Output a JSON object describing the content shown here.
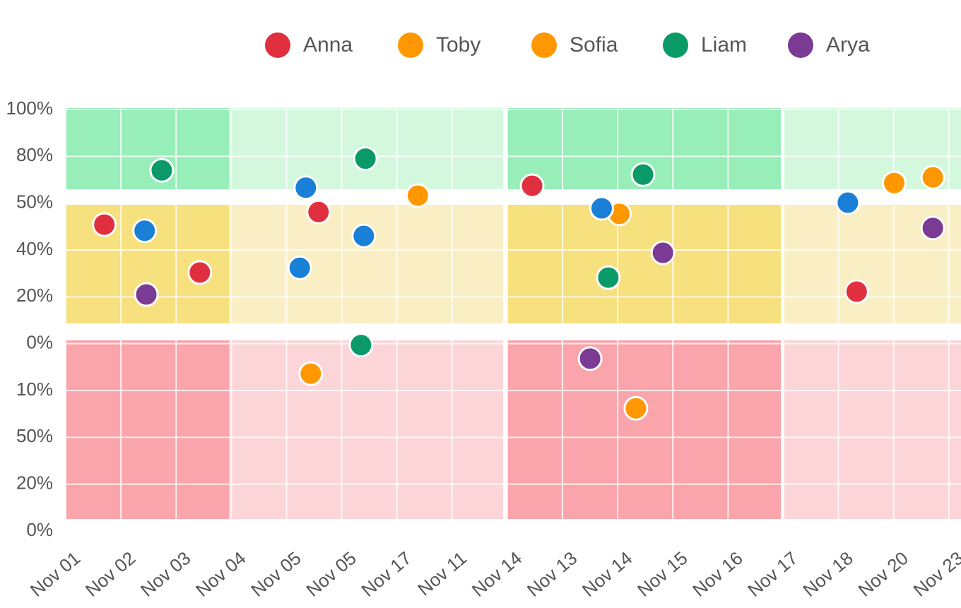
{
  "chart_data": {
    "type": "scatter",
    "xlim": [
      0,
      16.22
    ],
    "xticks": [
      {
        "value": 0,
        "label": "Nov 01"
      },
      {
        "value": 1,
        "label": "Nov 02"
      },
      {
        "value": 2,
        "label": "Nov 03"
      },
      {
        "value": 3,
        "label": "Nov 04"
      },
      {
        "value": 4,
        "label": "Nov 05"
      },
      {
        "value": 5,
        "label": "Nov 05"
      },
      {
        "value": 6,
        "label": "Nov 17"
      },
      {
        "value": 7,
        "label": "Nov 11"
      },
      {
        "value": 8,
        "label": "Nov 14"
      },
      {
        "value": 9,
        "label": "Nov 13"
      },
      {
        "value": 10,
        "label": "Nov 14"
      },
      {
        "value": 11,
        "label": "Nov 15"
      },
      {
        "value": 12,
        "label": "Nov 16"
      },
      {
        "value": 13,
        "label": "Nov 17"
      },
      {
        "value": 14,
        "label": "Nov 18"
      },
      {
        "value": 15,
        "label": "Nov 20"
      },
      {
        "value": 16,
        "label": "Nov 23"
      }
    ],
    "ylim": [
      0,
      9
    ],
    "yticks": [
      {
        "value": 0,
        "label": "0%"
      },
      {
        "value": 1,
        "label": "20%"
      },
      {
        "value": 2,
        "label": "50%"
      },
      {
        "value": 3,
        "label": "10%"
      },
      {
        "value": 4,
        "label": "0%"
      },
      {
        "value": 5,
        "label": "20%"
      },
      {
        "value": 6,
        "label": "40%"
      },
      {
        "value": 7,
        "label": "50%"
      },
      {
        "value": 8,
        "label": "80%"
      },
      {
        "value": 9,
        "label": "100%"
      }
    ],
    "grid": true,
    "series": [
      {
        "name": "Anna",
        "color": "#e0303f",
        "x": [
          0.7,
          4.58,
          2.43,
          8.45,
          14.33
        ],
        "values": [
          6.54,
          6.81,
          5.52,
          7.37,
          5.11
        ]
      },
      {
        "name": "Toby",
        "color": "#ff9800",
        "x": [
          6.38,
          4.44,
          10.03
        ],
        "values": [
          7.16,
          3.36,
          6.77
        ]
      },
      {
        "name": "Sofia",
        "color": "#ff9800",
        "x": [
          10.33,
          15.01,
          15.71
        ],
        "values": [
          2.62,
          7.43,
          7.55
        ]
      },
      {
        "name": "Liam",
        "color": "#0a9a68",
        "x": [
          1.74,
          5.43,
          5.35,
          10.46,
          9.83
        ],
        "values": [
          7.7,
          7.95,
          3.97,
          7.61,
          5.41
        ]
      },
      {
        "name": "Arya",
        "color": "#7b3a93",
        "x": [
          1.46,
          9.5,
          10.82,
          15.71
        ],
        "values": [
          5.05,
          3.68,
          5.94,
          6.47
        ]
      },
      {
        "name": null,
        "color": "#1a7fd6",
        "x": [
          1.43,
          4.35,
          4.24,
          5.4,
          9.71,
          14.17
        ],
        "values": [
          6.41,
          7.33,
          5.62,
          6.3,
          6.89,
          7.01
        ]
      }
    ]
  }
}
